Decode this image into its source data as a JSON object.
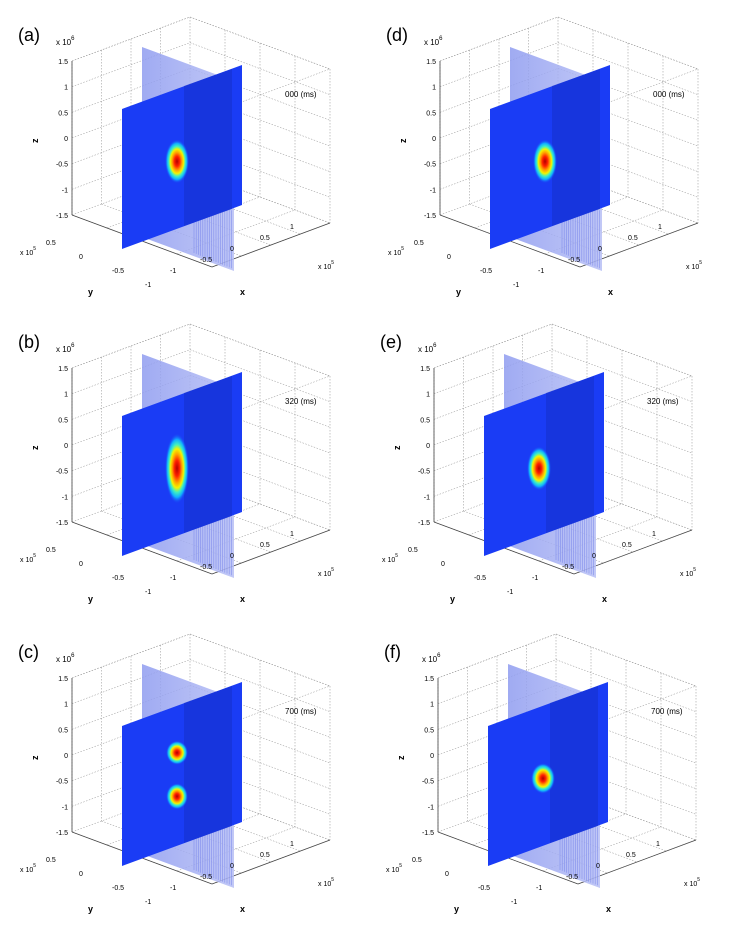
{
  "figure": {
    "panels": [
      {
        "label": "(a)",
        "time_label": "000 (ms)",
        "blobs": [
          {
            "z": -0.3,
            "x": 0.0,
            "w": 0.55,
            "h": 1.0
          }
        ]
      },
      {
        "label": "(d)",
        "time_label": "000 (ms)",
        "blobs": [
          {
            "z": -0.3,
            "x": 0.0,
            "w": 0.55,
            "h": 1.0
          }
        ]
      },
      {
        "label": "(b)",
        "time_label": "320 (ms)",
        "blobs": [
          {
            "z": -0.3,
            "x": 0.0,
            "w": 0.55,
            "h": 1.6
          }
        ]
      },
      {
        "label": "(e)",
        "time_label": "320 (ms)",
        "blobs": [
          {
            "z": -0.3,
            "x": 0.0,
            "w": 0.55,
            "h": 1.0
          }
        ]
      },
      {
        "label": "(c)",
        "time_label": "700 (ms)",
        "blobs": [
          {
            "z": 0.2,
            "x": 0.0,
            "w": 0.5,
            "h": 0.55
          },
          {
            "z": -0.65,
            "x": 0.0,
            "w": 0.5,
            "h": 0.6
          }
        ]
      },
      {
        "label": "(f)",
        "time_label": "700 (ms)",
        "blobs": [
          {
            "z": -0.3,
            "x": 0.0,
            "w": 0.55,
            "h": 0.7
          }
        ]
      }
    ],
    "axes": {
      "z_ticks": [
        "1.5",
        "1",
        "0.5",
        "0",
        "-0.5",
        "-1",
        "-1.5"
      ],
      "y_ticks": [
        "0.5",
        "0",
        "-0.5",
        "-1"
      ],
      "x_ticks": [
        "-1",
        "-0.5",
        "0",
        "0.5",
        "1"
      ],
      "z_label": "z",
      "y_label": "y",
      "x_label": "x",
      "scale_label": "x 10",
      "scale_exp": "6",
      "scale_exp_y": "5"
    }
  },
  "chart_data": {
    "type": "heatmap",
    "panels": [
      "(a)",
      "(d)",
      "(b)",
      "(e)",
      "(c)",
      "(f)"
    ],
    "time_labels": [
      "000 (ms)",
      "000 (ms)",
      "320 (ms)",
      "320 (ms)",
      "700 (ms)",
      "700 (ms)"
    ],
    "zlim": [
      -1.5,
      1.5
    ],
    "ylim": [
      -1,
      0.5
    ],
    "xlim": [
      -1,
      1
    ],
    "grid": true,
    "colormap": "jet",
    "colors": {
      "field": "#1a3cf5",
      "slice_back": "#9aa6f2",
      "peak": "#c20000"
    }
  }
}
